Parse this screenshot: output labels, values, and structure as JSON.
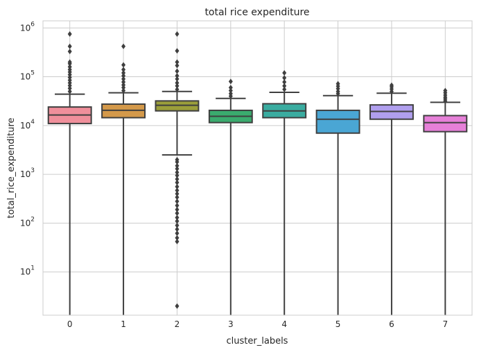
{
  "chart_data": {
    "type": "box",
    "title": "total rice expenditure",
    "xlabel": "cluster_labels",
    "ylabel": "total_rice_expenditure",
    "yscale": "log",
    "ylim": [
      1.3,
      1400000
    ],
    "grid": true,
    "categories": [
      "0",
      "1",
      "2",
      "3",
      "4",
      "5",
      "6",
      "7"
    ],
    "y_ticks": [
      {
        "value": 10,
        "base": "10",
        "exp": "1"
      },
      {
        "value": 100,
        "base": "10",
        "exp": "2"
      },
      {
        "value": 1000,
        "base": "10",
        "exp": "3"
      },
      {
        "value": 10000,
        "base": "10",
        "exp": "4"
      },
      {
        "value": 100000,
        "base": "10",
        "exp": "5"
      },
      {
        "value": 1000000,
        "base": "10",
        "exp": "6"
      }
    ],
    "boxes": [
      {
        "category": "0",
        "color": "#f08f9b",
        "whisker_low": 1,
        "q1": 11000,
        "median": 16500,
        "q3": 24000,
        "whisker_high": 44000,
        "outliers": [
          50000,
          58000,
          66000,
          75000,
          85000,
          97000,
          110000,
          125000,
          140000,
          160000,
          185000,
          200000,
          330000,
          420000,
          750000
        ]
      },
      {
        "category": "1",
        "color": "#d4994a",
        "whisker_low": 1,
        "q1": 14500,
        "median": 20500,
        "q3": 27500,
        "whisker_high": 47000,
        "outliers": [
          52000,
          60000,
          68000,
          78000,
          90000,
          105000,
          120000,
          140000,
          175000,
          420000
        ]
      },
      {
        "category": "2",
        "color": "#9b9e3a",
        "whisker_low": 2500,
        "q1": 20000,
        "median": 26000,
        "q3": 32000,
        "whisker_high": 50000,
        "outliers": [
          55000,
          65000,
          75000,
          90000,
          105000,
          130000,
          170000,
          200000,
          340000,
          750000,
          2000,
          1800,
          1500,
          1300,
          1100,
          950,
          800,
          680,
          560,
          470,
          400,
          340,
          280,
          230,
          190,
          160,
          130,
          110,
          90,
          75,
          62,
          50,
          42,
          2
        ]
      },
      {
        "category": "3",
        "color": "#3aab6e",
        "whisker_low": 1,
        "q1": 11500,
        "median": 15500,
        "q3": 20500,
        "whisker_high": 36000,
        "outliers": [
          40000,
          45000,
          52000,
          60000,
          80000
        ]
      },
      {
        "category": "4",
        "color": "#3aaca0",
        "whisker_low": 1,
        "q1": 14500,
        "median": 20000,
        "q3": 28000,
        "whisker_high": 48000,
        "outliers": [
          55000,
          65000,
          78000,
          95000,
          120000
        ]
      },
      {
        "category": "5",
        "color": "#4aa6d4",
        "whisker_low": 1,
        "q1": 7000,
        "median": 13500,
        "q3": 20500,
        "whisker_high": 41000,
        "outliers": [
          45000,
          50000,
          57000,
          64000,
          72000
        ]
      },
      {
        "category": "6",
        "color": "#b09fee",
        "whisker_low": 1,
        "q1": 13500,
        "median": 19500,
        "q3": 26500,
        "whisker_high": 46000,
        "outliers": [
          50000,
          56000,
          62000,
          67000
        ]
      },
      {
        "category": "7",
        "color": "#e680d8",
        "whisker_low": 1,
        "q1": 7500,
        "median": 11500,
        "q3": 16000,
        "whisker_high": 30000,
        "outliers": [
          32000,
          35000,
          38000,
          42000,
          47000,
          52000
        ]
      }
    ]
  }
}
